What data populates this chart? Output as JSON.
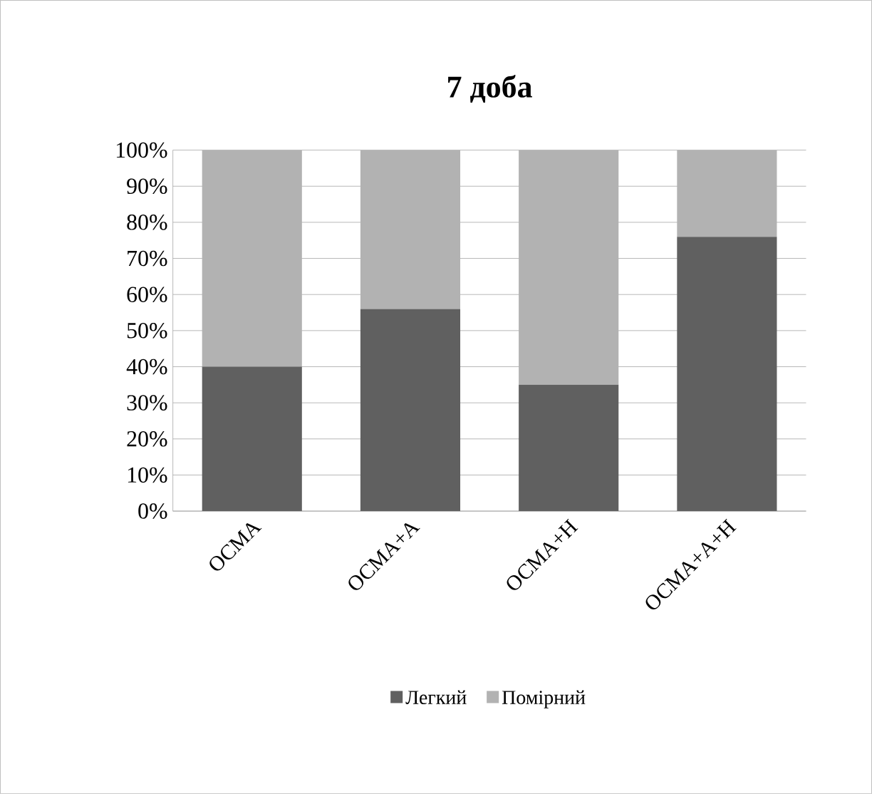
{
  "chart_data": {
    "type": "bar",
    "title": "7 доба",
    "stacked": true,
    "categories": [
      "ОСМА",
      "ОСМА+А",
      "ОСМА+Н",
      "ОСМА+А+Н"
    ],
    "series": [
      {
        "name": "Легкий",
        "color": "#606060",
        "values": [
          40,
          56,
          35,
          76
        ]
      },
      {
        "name": "Помірний",
        "color": "#b2b2b2",
        "values": [
          60,
          44,
          65,
          24
        ]
      }
    ],
    "ylim": [
      0,
      100
    ],
    "yticks": [
      {
        "value": 0,
        "label": "0%"
      },
      {
        "value": 10,
        "label": "10%"
      },
      {
        "value": 20,
        "label": "20%"
      },
      {
        "value": 30,
        "label": "30%"
      },
      {
        "value": 40,
        "label": "40%"
      },
      {
        "value": 50,
        "label": "50%"
      },
      {
        "value": 60,
        "label": "60%"
      },
      {
        "value": 70,
        "label": "70%"
      },
      {
        "value": 80,
        "label": "80%"
      },
      {
        "value": 90,
        "label": "90%"
      },
      {
        "value": 100,
        "label": "100%"
      }
    ],
    "grid": "y",
    "legend": "bottom"
  }
}
